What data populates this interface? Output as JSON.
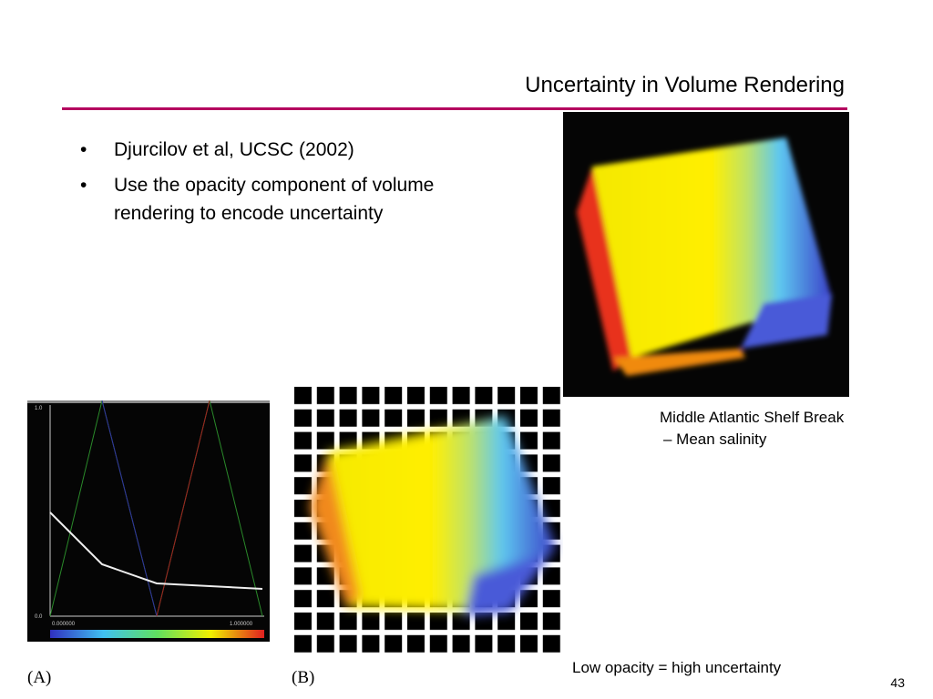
{
  "slide": {
    "title": "Uncertainty in Volume Rendering",
    "bullets": [
      "Djurcilov et al, UCSC (2002)",
      "Use the opacity component of volume rendering to encode uncertainty"
    ],
    "figure_caption": [
      "Middle Atlantic Shelf Break",
      "– Mean salinity"
    ],
    "note": "Low opacity = high uncertainty",
    "panel_labels": [
      "(A)",
      "(B)"
    ],
    "transfer_function": {
      "y_labels": [
        "1.0",
        "0.0"
      ],
      "x_labels": [
        "0.000000",
        "1.000000"
      ]
    },
    "page_number": "43"
  }
}
